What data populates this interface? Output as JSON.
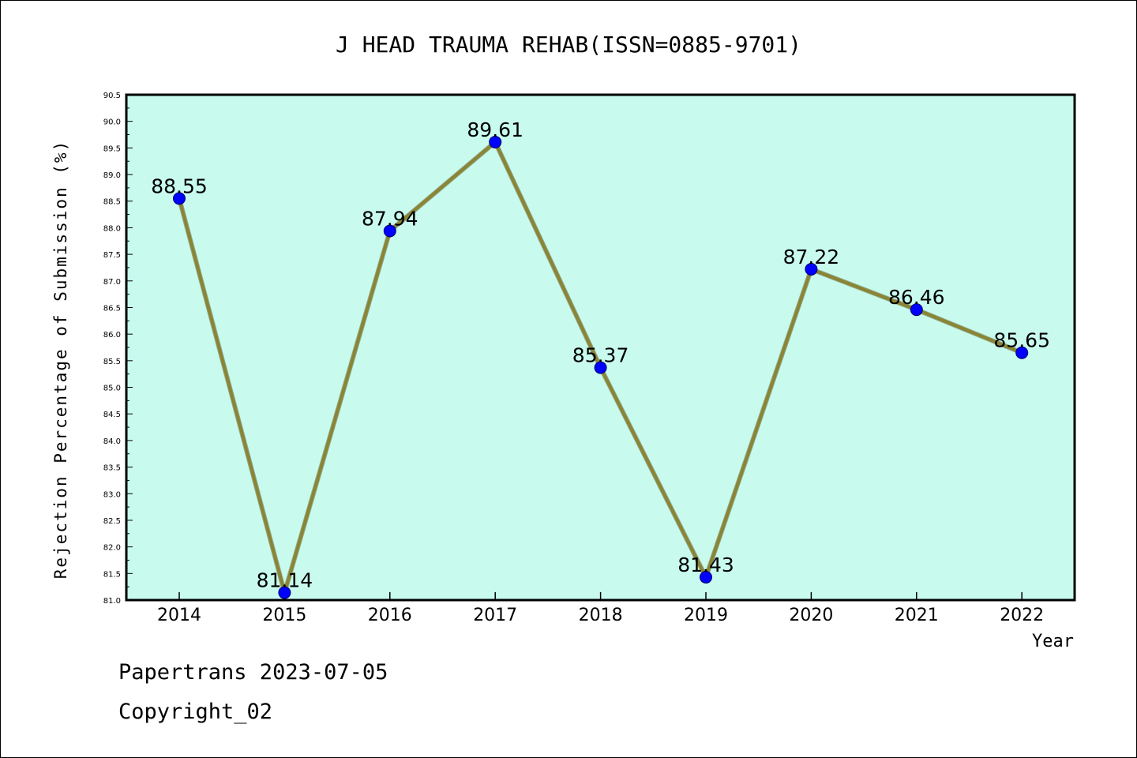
{
  "chart_data": {
    "type": "line",
    "title": "J HEAD TRAUMA REHAB(ISSN=0885-9701)",
    "xlabel": "Year",
    "ylabel": "Rejection Percentage of Submission (%)",
    "categories": [
      "2014",
      "2015",
      "2016",
      "2017",
      "2018",
      "2019",
      "2020",
      "2021",
      "2022"
    ],
    "values": [
      88.55,
      81.14,
      87.94,
      89.61,
      85.37,
      81.43,
      87.22,
      86.46,
      85.65
    ],
    "value_labels": [
      "88.55",
      "81.14",
      "87.94",
      "89.61",
      "85.37",
      "81.43",
      "87.22",
      "86.46",
      "85.65"
    ],
    "ylim": [
      81.0,
      90.5
    ],
    "ytick_step": 0.5,
    "grid": false,
    "colors": {
      "plot_background": "#c8fbee",
      "line": "#8b8434",
      "marker": "#0000ff"
    }
  },
  "footer": {
    "line1": "Papertrans 2023-07-05",
    "line2": "Copyright_02"
  }
}
